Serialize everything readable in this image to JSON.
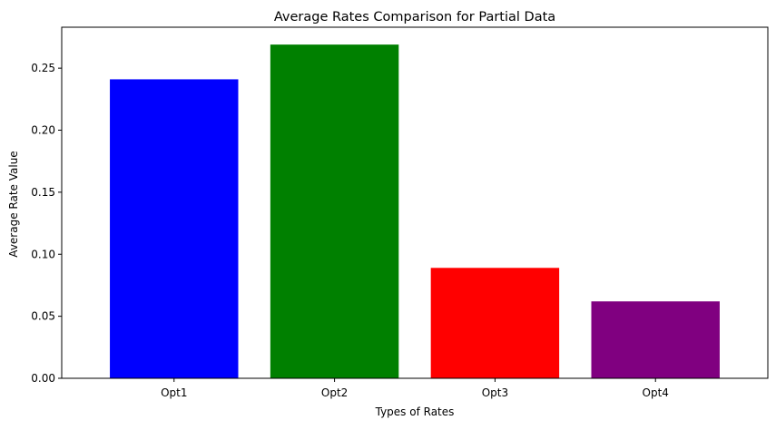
{
  "chart_data": {
    "type": "bar",
    "title": "Average Rates Comparison for Partial Data",
    "xlabel": "Types of Rates",
    "ylabel": "Average Rate Value",
    "categories": [
      "Opt1",
      "Opt2",
      "Opt3",
      "Opt4"
    ],
    "values": [
      0.241,
      0.269,
      0.089,
      0.062
    ],
    "colors": [
      "#0000ff",
      "#008000",
      "#ff0000",
      "#800080"
    ],
    "ylim": [
      0,
      0.283
    ],
    "yticks": [
      0.0,
      0.05,
      0.1,
      0.15,
      0.2,
      0.25
    ],
    "ytick_labels": [
      "0.00",
      "0.05",
      "0.10",
      "0.15",
      "0.20",
      "0.25"
    ],
    "grid": false,
    "legend": "none"
  }
}
